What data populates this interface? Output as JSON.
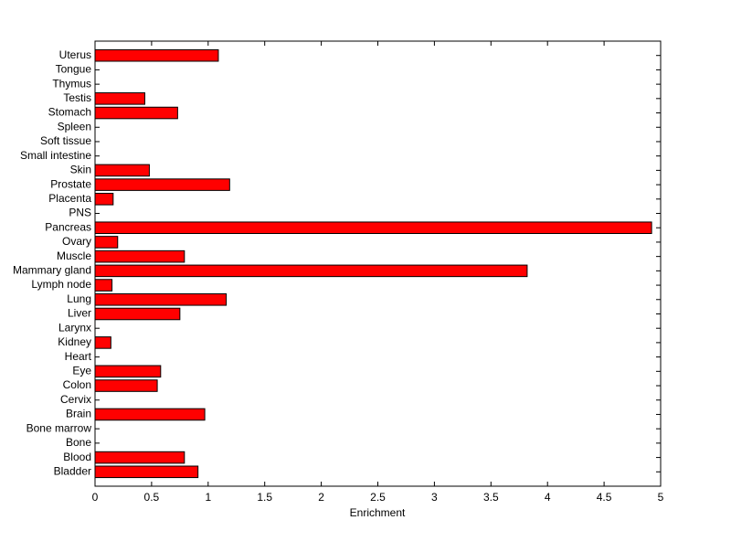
{
  "chart_data": {
    "type": "barh",
    "xlabel": "Enrichment",
    "color": "#ff0000",
    "categories": [
      "Bladder",
      "Blood",
      "Bone",
      "Bone marrow",
      "Brain",
      "Cervix",
      "Colon",
      "Eye",
      "Heart",
      "Kidney",
      "Larynx",
      "Liver",
      "Lung",
      "Lymph node",
      "Mammary gland",
      "Muscle",
      "Ovary",
      "Pancreas",
      "PNS",
      "Placenta",
      "Prostate",
      "Skin",
      "Small intestine",
      "Soft tissue",
      "Spleen",
      "Stomach",
      "Testis",
      "Thymus",
      "Tongue",
      "Uterus"
    ],
    "values": [
      0.91,
      0.79,
      0,
      0,
      0.97,
      0,
      0.55,
      0.58,
      0,
      0.14,
      0,
      0.75,
      1.16,
      0.15,
      3.82,
      0.79,
      0.2,
      4.92,
      0,
      0.16,
      1.19,
      0.48,
      0,
      0,
      0,
      0.73,
      0.44,
      0,
      0,
      1.09
    ],
    "xlim": [
      0,
      5
    ],
    "xticks": [
      0,
      0.5,
      1,
      1.5,
      2,
      2.5,
      3,
      3.5,
      4,
      4.5,
      5
    ]
  }
}
